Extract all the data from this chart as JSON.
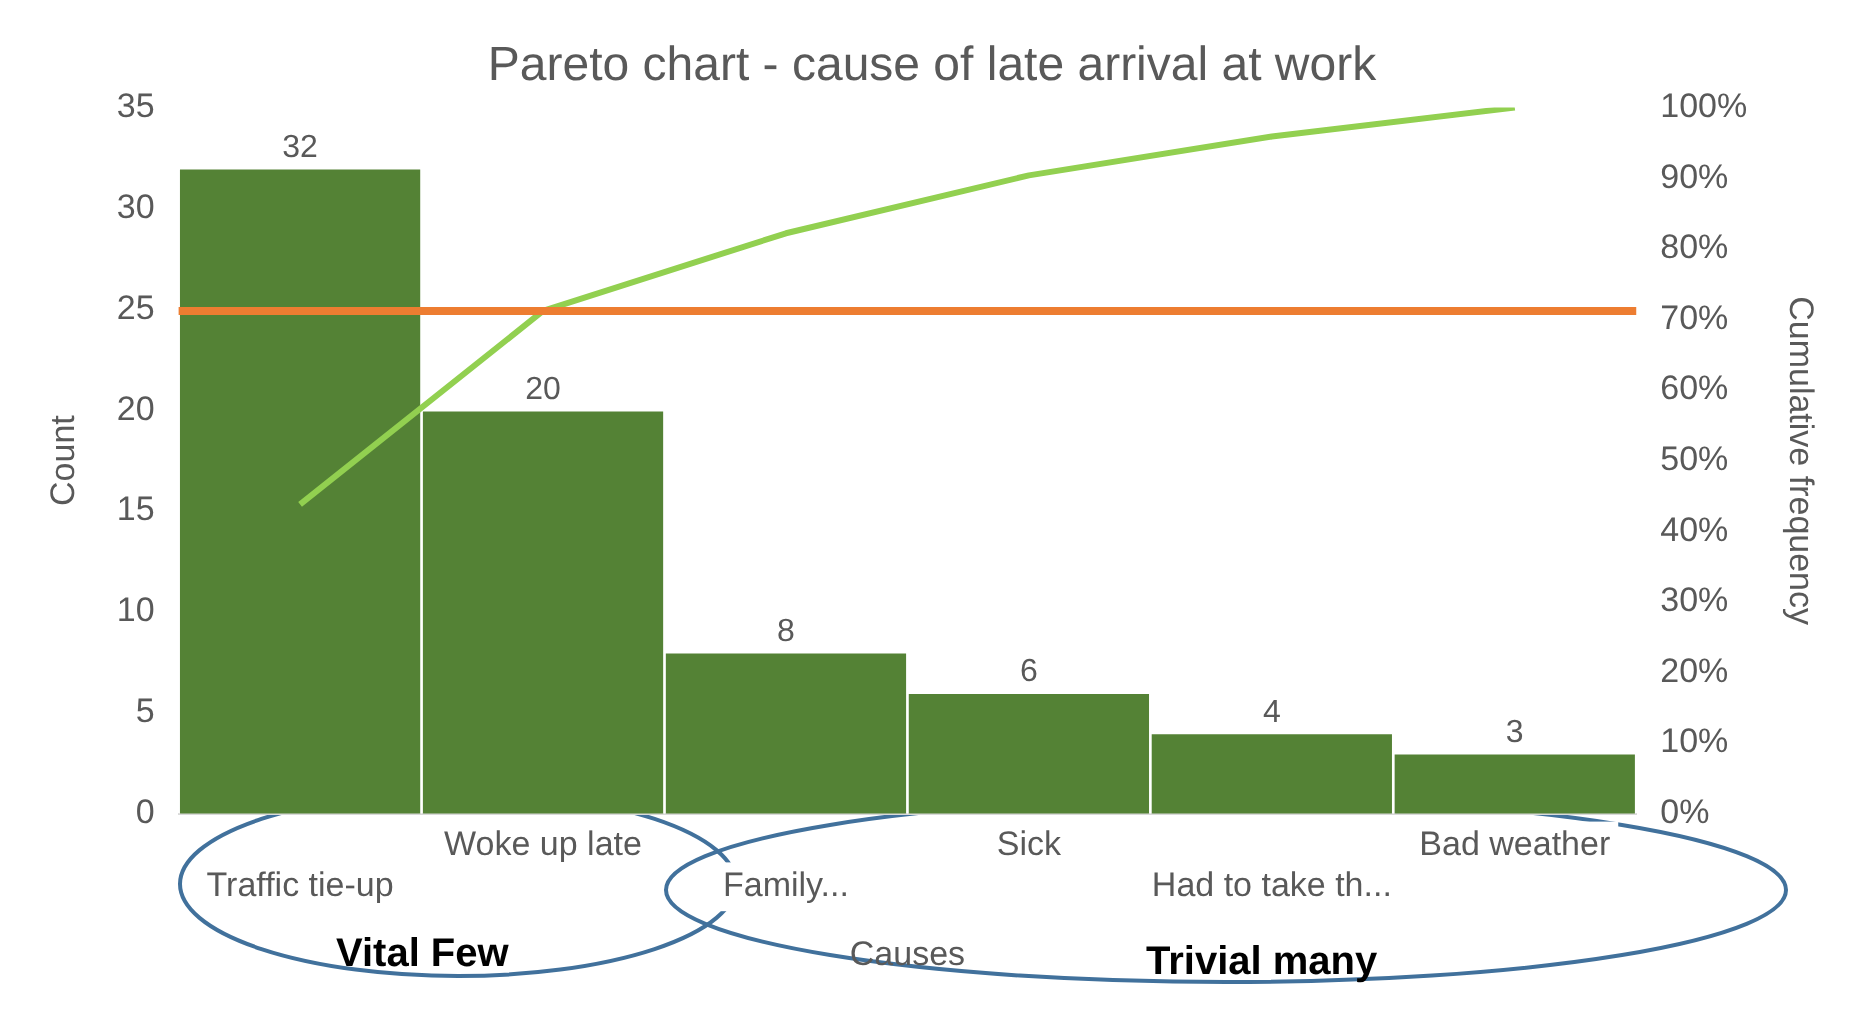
{
  "chart_data": {
    "type": "bar",
    "title": "Pareto chart - cause of late arrival at work",
    "xlabel": "Causes",
    "ylabel": "Count",
    "y2label": "Cumulative frequency",
    "categories": [
      "Traffic tie-up",
      "Woke up late",
      "Family...",
      "Sick",
      "Had to take th...",
      "Bad weather"
    ],
    "series": [
      {
        "color": "#548235",
        "values": [
          32,
          20,
          8,
          6,
          4,
          3
        ],
        "value_labels": [
          "32",
          "20",
          "8",
          "6",
          "4",
          "3"
        ]
      },
      {
        "type": "line",
        "axis": "y2",
        "color": "#92d050",
        "values": [
          43.8,
          71.2,
          82.2,
          90.4,
          95.9,
          100
        ]
      }
    ],
    "ylim": [
      0,
      35
    ],
    "yticks": [
      0,
      5,
      10,
      15,
      20,
      25,
      30,
      35
    ],
    "y2lim": [
      0,
      100
    ],
    "y2ticks": [
      {
        "value": 0,
        "label": "0%"
      },
      {
        "value": 10,
        "label": "10%"
      },
      {
        "value": 20,
        "label": "20%"
      },
      {
        "value": 30,
        "label": "30%"
      },
      {
        "value": 40,
        "label": "40%"
      },
      {
        "value": 50,
        "label": "50%"
      },
      {
        "value": 60,
        "label": "60%"
      },
      {
        "value": 70,
        "label": "70%"
      },
      {
        "value": 80,
        "label": "80%"
      },
      {
        "value": 90,
        "label": "90%"
      },
      {
        "value": 100,
        "label": "100%"
      }
    ],
    "ref_lines": [
      {
        "axis": "y2",
        "value": 71.2,
        "color": "#ed7d31"
      }
    ],
    "annotations": [
      "Vital Few",
      "Trivial many"
    ],
    "grid": false,
    "legend": false,
    "marker": "none"
  }
}
